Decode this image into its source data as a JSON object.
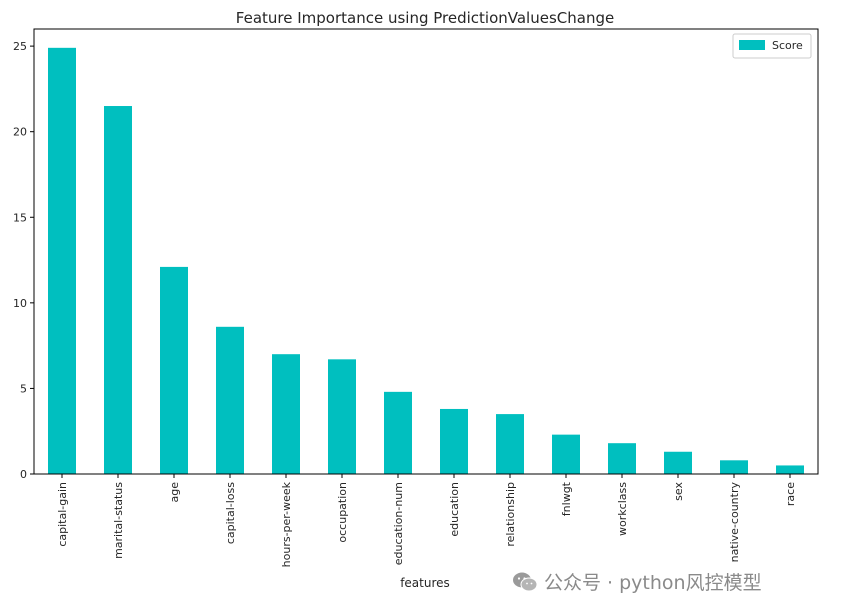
{
  "chart_data": {
    "type": "bar",
    "title": "Feature Importance using PredictionValuesChange",
    "xlabel": "features",
    "ylabel": "",
    "categories": [
      "capital-gain",
      "marital-status",
      "age",
      "capital-loss",
      "hours-per-week",
      "occupation",
      "education-num",
      "education",
      "relationship",
      "fnlwgt",
      "workclass",
      "sex",
      "native-country",
      "race"
    ],
    "series": [
      {
        "name": "Score",
        "values": [
          24.9,
          21.5,
          12.1,
          8.6,
          7.0,
          6.7,
          4.8,
          3.8,
          3.5,
          2.3,
          1.8,
          1.3,
          0.8,
          0.5
        ]
      }
    ],
    "ylim": [
      0,
      26
    ],
    "yticks": [
      0,
      5,
      10,
      15,
      20,
      25
    ],
    "grid": false,
    "legend_position": "top-right",
    "bar_color": "#00bfbf"
  },
  "watermark": {
    "text": "公众号 · python风控模型",
    "icon": "wechat-icon"
  }
}
